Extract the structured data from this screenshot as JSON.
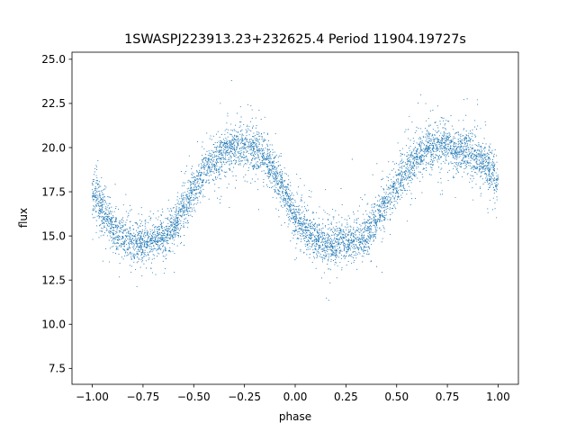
{
  "chart_data": {
    "type": "scatter",
    "title": "1SWASPJ223913.23+232625.4 Period 11904.19727s",
    "xlabel": "phase",
    "ylabel": "flux",
    "xlim": [
      -1.1,
      1.1
    ],
    "ylim": [
      6.6,
      25.4
    ],
    "xticks": [
      -1.0,
      -0.75,
      -0.5,
      -0.25,
      0.0,
      0.25,
      0.5,
      0.75,
      1.0
    ],
    "xtick_labels": [
      "−1.00",
      "−0.75",
      "−0.50",
      "−0.25",
      "0.00",
      "0.25",
      "0.50",
      "0.75",
      "1.00"
    ],
    "yticks": [
      7.5,
      10.0,
      12.5,
      15.0,
      17.5,
      20.0,
      22.5,
      25.0
    ],
    "ytick_labels": [
      "7.5",
      "10.0",
      "12.5",
      "15.0",
      "17.5",
      "20.0",
      "22.5",
      "25.0"
    ],
    "grid": false,
    "point_color": "#1f77b4",
    "model": {
      "phase_min": -0.72,
      "flux_min": 14.7,
      "flux_max": 20.1,
      "period_in_phase": 1.0,
      "note_points_scatter_sd": 0.55
    },
    "series": [
      {
        "name": "",
        "x": [
          -1.0,
          -0.95,
          -0.9,
          -0.85,
          -0.8,
          -0.75,
          -0.7,
          -0.65,
          -0.6,
          -0.55,
          -0.5,
          -0.45,
          -0.4,
          -0.35,
          -0.3,
          -0.25,
          -0.2,
          -0.15,
          -0.1,
          -0.05,
          0.0,
          0.05,
          0.1,
          0.15,
          0.2,
          0.25,
          0.3,
          0.35,
          0.4,
          0.45,
          0.5,
          0.55,
          0.6,
          0.65,
          0.7,
          0.75,
          0.8,
          0.85,
          0.9,
          0.95,
          1.0
        ],
        "y": [
          17.6,
          16.4,
          15.5,
          14.9,
          14.7,
          14.6,
          14.7,
          14.9,
          15.6,
          16.6,
          17.6,
          18.6,
          19.3,
          19.8,
          20.0,
          20.1,
          19.9,
          19.4,
          18.5,
          17.4,
          16.2,
          15.3,
          14.8,
          14.6,
          14.6,
          14.7,
          14.8,
          15.1,
          15.9,
          16.9,
          17.9,
          18.8,
          19.5,
          19.9,
          20.1,
          20.1,
          19.9,
          19.7,
          19.4,
          18.9,
          18.1
        ]
      }
    ]
  }
}
